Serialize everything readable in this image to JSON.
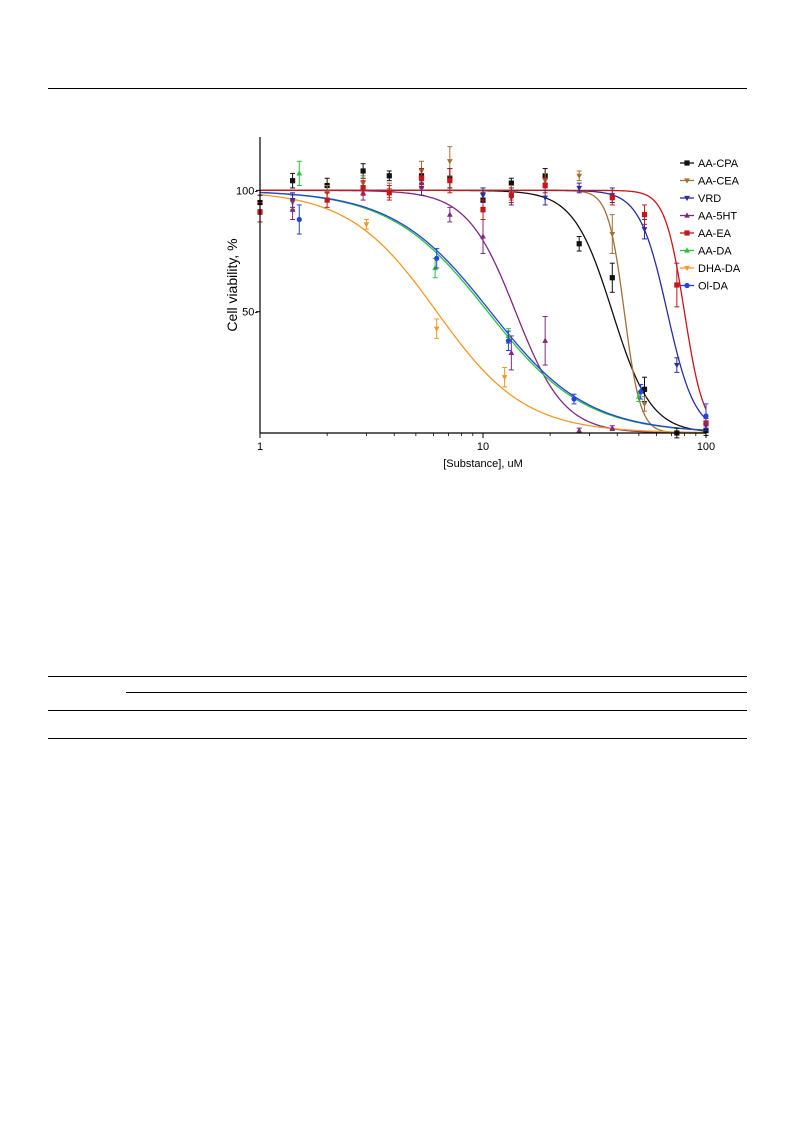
{
  "chart_data": {
    "type": "scatter",
    "xscale": "log",
    "xlim": [
      1,
      100
    ],
    "ylim": [
      0,
      122
    ],
    "xlabel": "[Substance], uM",
    "ylabel": "Cell viability, %",
    "x_ticks": [
      1,
      10,
      100
    ],
    "x_tick_labels": [
      "1",
      "10",
      "100"
    ],
    "y_ticks": [
      50,
      100
    ],
    "y_tick_labels": [
      "50-",
      "100-"
    ],
    "legend_position": "top-right",
    "series": [
      {
        "name": "AA-CPA",
        "color": "#111111",
        "marker": "square",
        "fit": {
          "top": 100,
          "bottom": 0,
          "ic50": 38,
          "hill": 5
        },
        "points": [
          {
            "x": 1,
            "y": 95,
            "err": 3
          },
          {
            "x": 1.4,
            "y": 104,
            "err": 3
          },
          {
            "x": 2,
            "y": 102,
            "err": 3
          },
          {
            "x": 2.9,
            "y": 108,
            "err": 3
          },
          {
            "x": 3.8,
            "y": 106,
            "err": 2
          },
          {
            "x": 5.3,
            "y": 106,
            "err": 3
          },
          {
            "x": 7.1,
            "y": 105,
            "err": 4
          },
          {
            "x": 10,
            "y": 96,
            "err": 3
          },
          {
            "x": 13.4,
            "y": 103,
            "err": 2
          },
          {
            "x": 19,
            "y": 106,
            "err": 3
          },
          {
            "x": 27,
            "y": 78,
            "err": 3
          },
          {
            "x": 38,
            "y": 64,
            "err": 6
          },
          {
            "x": 53,
            "y": 18,
            "err": 5
          },
          {
            "x": 74,
            "y": 0,
            "err": 2
          },
          {
            "x": 100,
            "y": 1,
            "err": 2
          }
        ]
      },
      {
        "name": "AA-CEA",
        "color": "#a0703a",
        "marker": "triangle-down",
        "fit": {
          "top": 100,
          "bottom": 0,
          "ic50": 43,
          "hill": 12
        },
        "points": [
          {
            "x": 1.4,
            "y": 95,
            "err": 3
          },
          {
            "x": 2,
            "y": 99,
            "err": 3
          },
          {
            "x": 2.9,
            "y": 103,
            "err": 3
          },
          {
            "x": 3.8,
            "y": 100,
            "err": 3
          },
          {
            "x": 5.3,
            "y": 108,
            "err": 4
          },
          {
            "x": 7.1,
            "y": 112,
            "err": 6
          },
          {
            "x": 10,
            "y": 98,
            "err": 3
          },
          {
            "x": 13.4,
            "y": 99,
            "err": 3
          },
          {
            "x": 19,
            "y": 104,
            "err": 3
          },
          {
            "x": 27,
            "y": 106,
            "err": 2
          },
          {
            "x": 38,
            "y": 82,
            "err": 8
          },
          {
            "x": 53,
            "y": 12,
            "err": 3
          }
        ]
      },
      {
        "name": "VRD",
        "color": "#2c2c9e",
        "marker": "triangle-down",
        "fit": {
          "top": 100,
          "bottom": 0,
          "ic50": 67,
          "hill": 7
        },
        "points": [
          {
            "x": 1.4,
            "y": 96,
            "err": 3
          },
          {
            "x": 5.3,
            "y": 101,
            "err": 3
          },
          {
            "x": 10,
            "y": 98,
            "err": 3
          },
          {
            "x": 13.4,
            "y": 97,
            "err": 3
          },
          {
            "x": 19,
            "y": 97,
            "err": 3
          },
          {
            "x": 27,
            "y": 101,
            "err": 2
          },
          {
            "x": 38,
            "y": 98,
            "err": 3
          },
          {
            "x": 53,
            "y": 84,
            "err": 4
          },
          {
            "x": 74,
            "y": 28,
            "err": 3
          },
          {
            "x": 100,
            "y": 3,
            "err": 2
          }
        ]
      },
      {
        "name": "AA-5HT",
        "color": "#7e2a7e",
        "marker": "triangle-up",
        "fit": {
          "top": 100,
          "bottom": 0,
          "ic50": 14,
          "hill": 4
        },
        "points": [
          {
            "x": 1.4,
            "y": 92,
            "err": 4
          },
          {
            "x": 2.9,
            "y": 99,
            "err": 3
          },
          {
            "x": 5.3,
            "y": 103,
            "err": 3
          },
          {
            "x": 7.1,
            "y": 90,
            "err": 3
          },
          {
            "x": 10,
            "y": 81,
            "err": 7
          },
          {
            "x": 13.4,
            "y": 33,
            "err": 7
          },
          {
            "x": 19,
            "y": 38,
            "err": 10
          },
          {
            "x": 27,
            "y": 1,
            "err": 1
          },
          {
            "x": 38,
            "y": 2,
            "err": 1
          }
        ]
      },
      {
        "name": "AA-EA",
        "color": "#c8151b",
        "marker": "square",
        "fit": {
          "top": 100,
          "bottom": 0,
          "ic50": 80,
          "hill": 10
        },
        "points": [
          {
            "x": 1,
            "y": 91,
            "err": 4
          },
          {
            "x": 2,
            "y": 96,
            "err": 3
          },
          {
            "x": 2.9,
            "y": 101,
            "err": 3
          },
          {
            "x": 3.8,
            "y": 99,
            "err": 3
          },
          {
            "x": 5.3,
            "y": 105,
            "err": 4
          },
          {
            "x": 7.1,
            "y": 104,
            "err": 5
          },
          {
            "x": 10,
            "y": 92,
            "err": 4
          },
          {
            "x": 13.4,
            "y": 98,
            "err": 3
          },
          {
            "x": 19,
            "y": 102,
            "err": 3
          },
          {
            "x": 38,
            "y": 97,
            "err": 3
          },
          {
            "x": 53,
            "y": 90,
            "err": 4
          },
          {
            "x": 74,
            "y": 61,
            "err": 9
          },
          {
            "x": 100,
            "y": 4,
            "err": 2
          }
        ]
      },
      {
        "name": "AA-DA",
        "color": "#27c33e",
        "marker": "triangle-up",
        "fit": {
          "top": 100,
          "bottom": 0,
          "ic50": 10.5,
          "hill": 2
        },
        "points": [
          {
            "x": 1.5,
            "y": 107,
            "err": 5
          },
          {
            "x": 6.1,
            "y": 68,
            "err": 4
          },
          {
            "x": 13,
            "y": 40,
            "err": 3
          },
          {
            "x": 50,
            "y": 15,
            "err": 2
          }
        ]
      },
      {
        "name": "DHA-DA",
        "color": "#f09a27",
        "marker": "triangle-down",
        "fit": {
          "top": 100,
          "bottom": 0,
          "ic50": 6.2,
          "hill": 2.2
        },
        "points": [
          {
            "x": 3,
            "y": 86,
            "err": 2
          },
          {
            "x": 6.2,
            "y": 43,
            "err": 4
          },
          {
            "x": 12.5,
            "y": 23,
            "err": 4
          }
        ]
      },
      {
        "name": "Ol-DA",
        "color": "#2541e0",
        "marker": "circle",
        "fit": {
          "top": 100,
          "bottom": 0,
          "ic50": 10.8,
          "hill": 2
        },
        "points": [
          {
            "x": 1.5,
            "y": 88,
            "err": 6
          },
          {
            "x": 6.2,
            "y": 72,
            "err": 4
          },
          {
            "x": 13,
            "y": 38,
            "err": 4
          },
          {
            "x": 25.6,
            "y": 14,
            "err": 2
          },
          {
            "x": 51,
            "y": 17,
            "err": 3
          },
          {
            "x": 100,
            "y": 7,
            "err": 5
          }
        ]
      }
    ]
  }
}
